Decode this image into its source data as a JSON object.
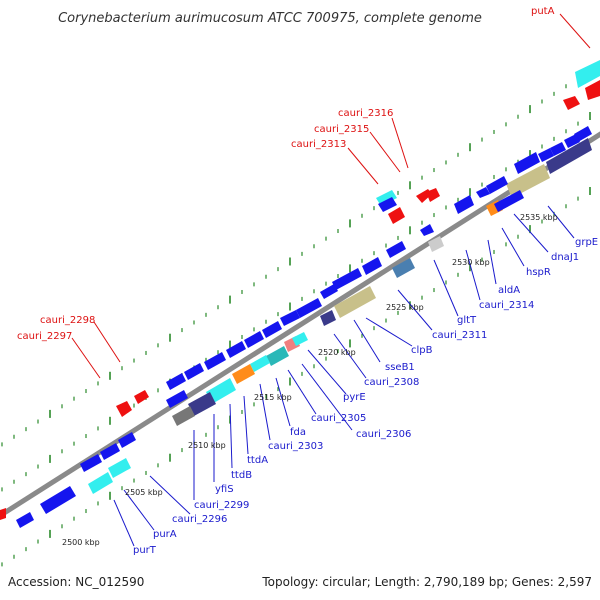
{
  "title": "Corynebacterium aurimucosum ATCC 700975, complete genome",
  "footer": {
    "accession": "Accession: NC_012590",
    "summary": "Topology: circular; Length: 2,790,189 bp; Genes: 2,597"
  },
  "colors": {
    "backbone": "#8a8a8a",
    "tick": "#2a8a2a",
    "forward_label": "#dd1111",
    "reverse_label": "#1a1acc",
    "blue": "#1515ee",
    "cyan": "#33eeee",
    "red": "#ee1111",
    "navy": "#3a3a8a",
    "olive": "#c8c08a",
    "orange": "#ff8c1a",
    "steel": "#4a7fb0",
    "pink": "#f08080",
    "gray": "#777777",
    "lightgray": "#cccccc"
  },
  "scale_labels": [
    "2500 kbp",
    "2505 kbp",
    "2510 kbp",
    "2515 kbp",
    "2520 kbp",
    "2525 kbp",
    "2530 kbp",
    "2535 kbp"
  ],
  "forward_labels": [
    "putA",
    "cauri_2316",
    "cauri_2315",
    "cauri_2313",
    "cauri_2298",
    "cauri_2297"
  ],
  "reverse_labels": [
    "purT",
    "purA",
    "cauri_2296",
    "cauri_2299",
    "yfiS",
    "ttdB",
    "ttdA",
    "cauri_2303",
    "fda",
    "cauri_2305",
    "cauri_2306",
    "pyrE",
    "cauri_2308",
    "sseB1",
    "clpB",
    "cauri_2311",
    "gltT",
    "cauri_2314",
    "aldA",
    "hspR",
    "dnaJ1",
    "grpE"
  ]
}
